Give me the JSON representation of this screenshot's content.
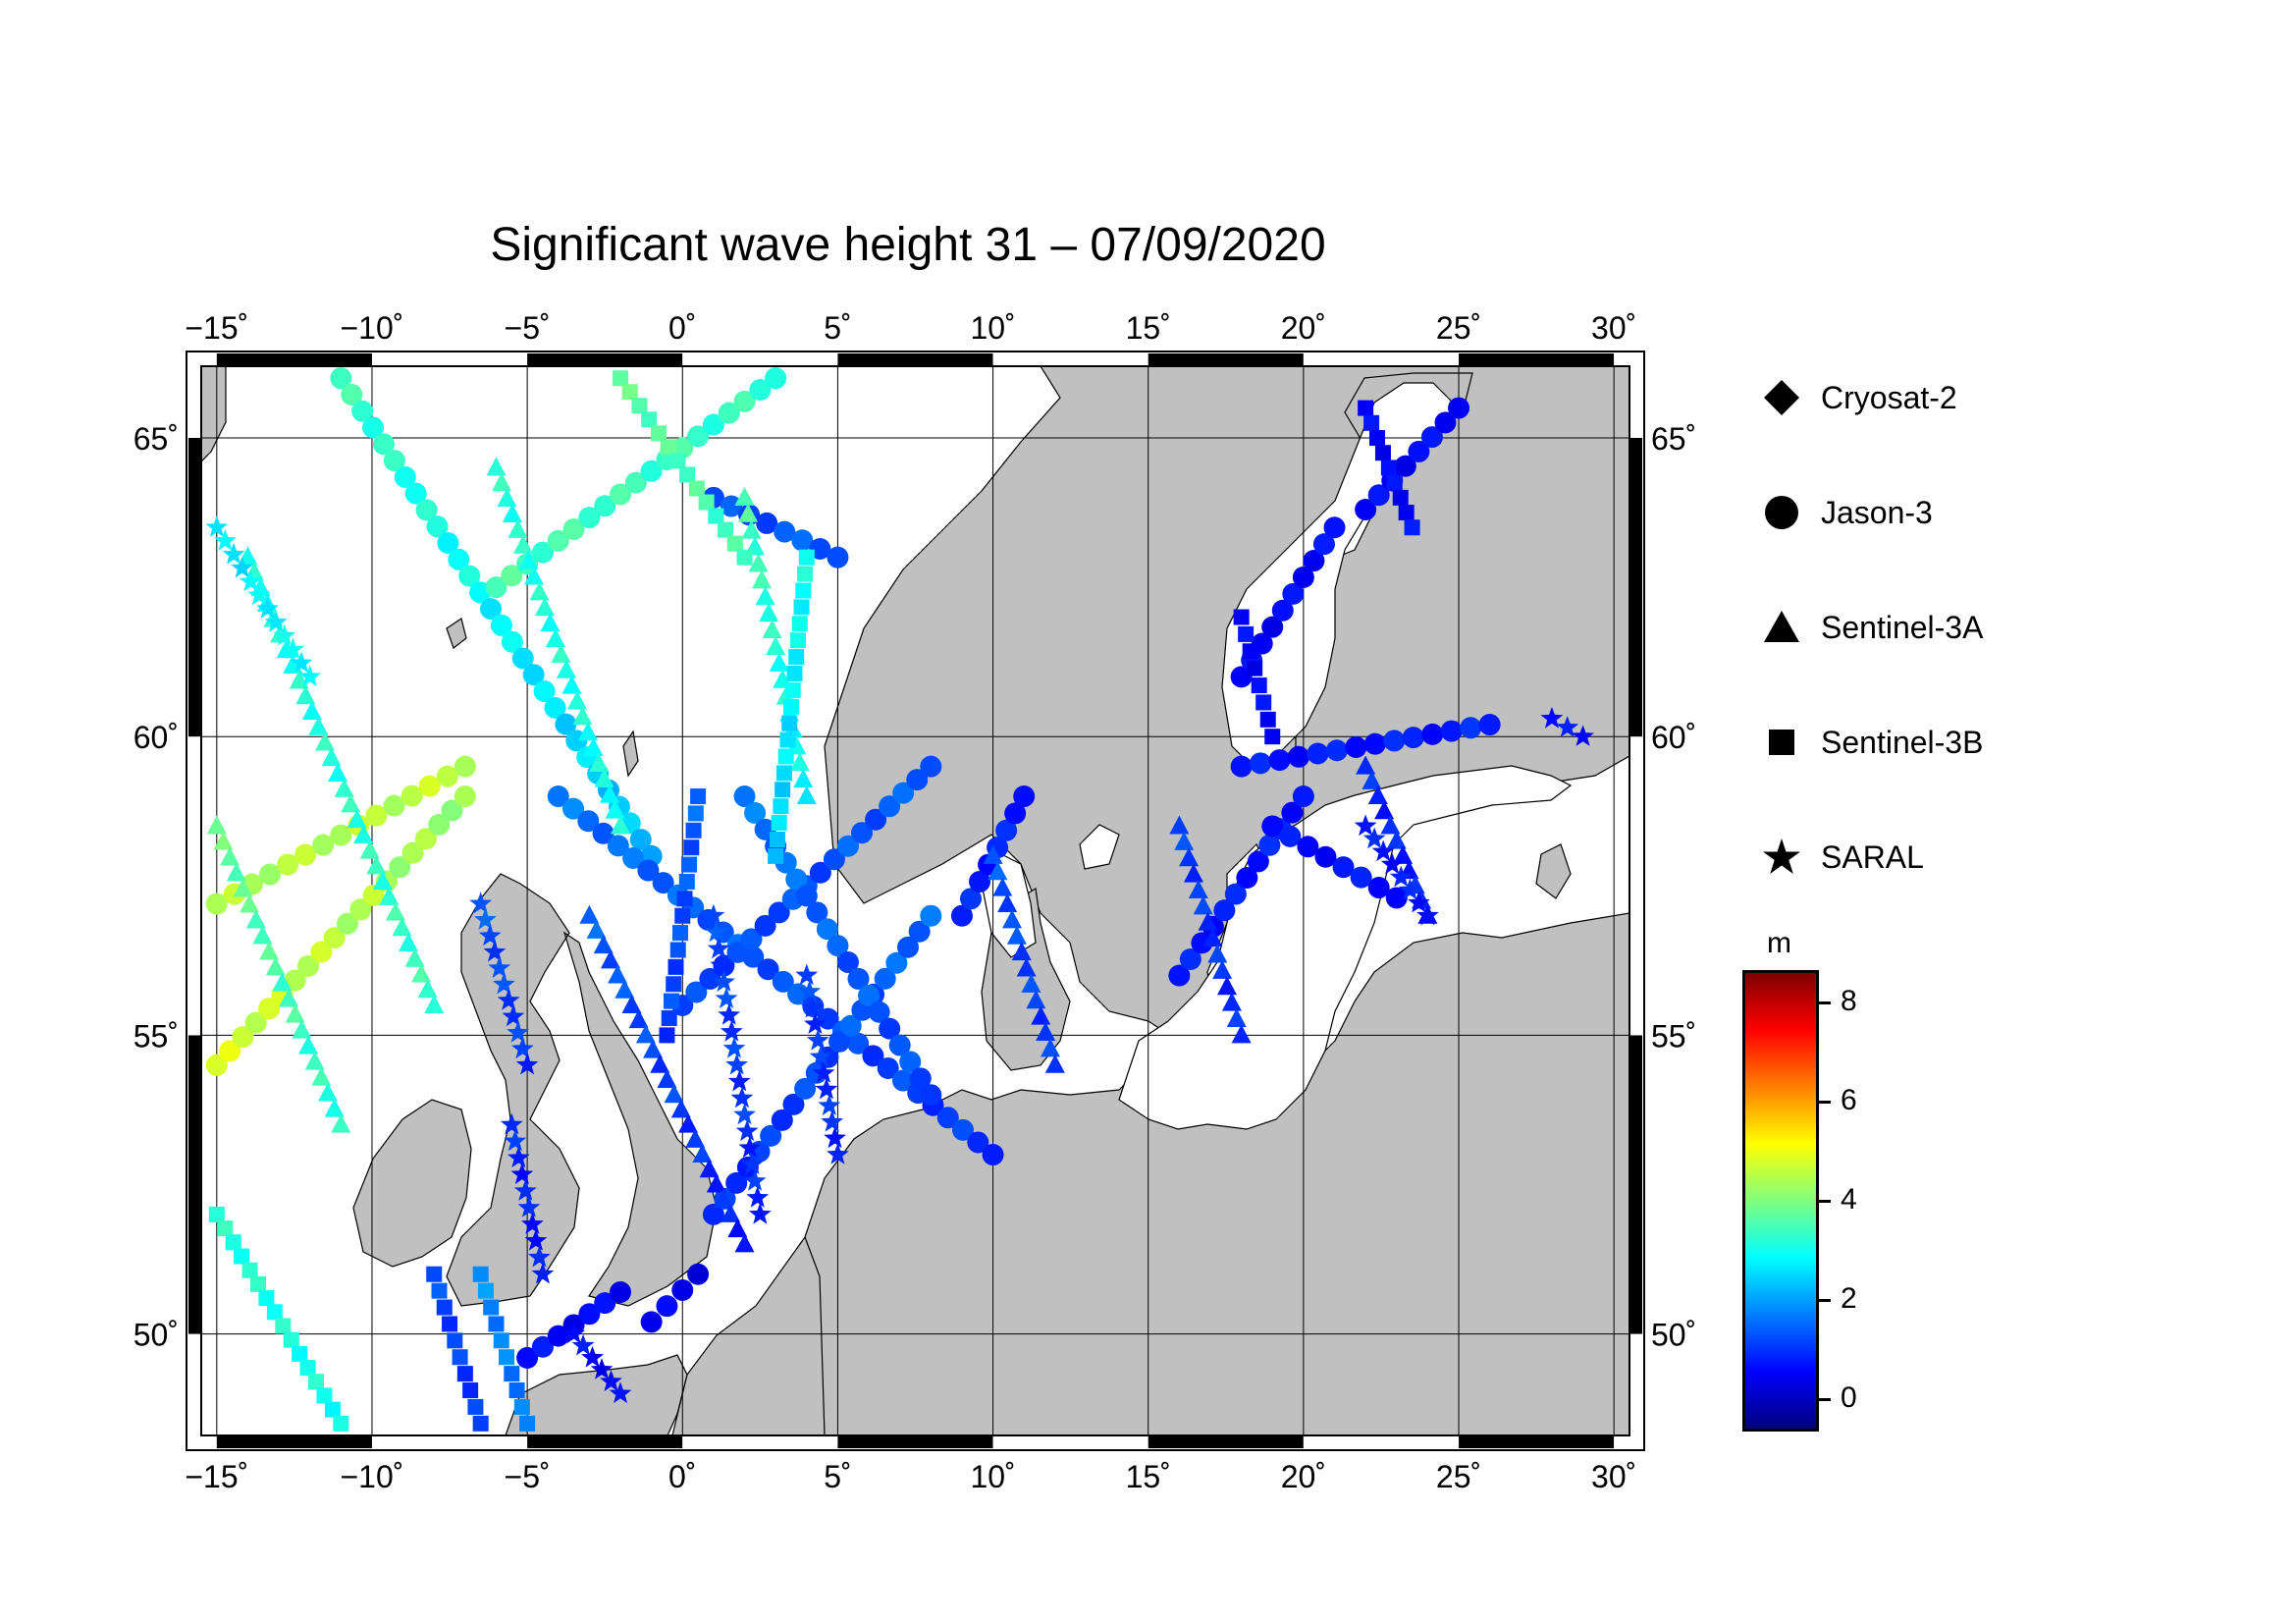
{
  "title": "Significant wave height 31 – 07/09/2020",
  "map": {
    "lon_range": [
      -15.5,
      30.5
    ],
    "lat_range": [
      48.3,
      66.2
    ],
    "lon_ticks": [
      {
        "value": -15,
        "label": "−15˚"
      },
      {
        "value": -10,
        "label": "−10˚"
      },
      {
        "value": -5,
        "label": "−5˚"
      },
      {
        "value": 0,
        "label": "0˚"
      },
      {
        "value": 5,
        "label": "5˚"
      },
      {
        "value": 10,
        "label": "10˚"
      },
      {
        "value": 15,
        "label": "15˚"
      },
      {
        "value": 20,
        "label": "20˚"
      },
      {
        "value": 25,
        "label": "25˚"
      },
      {
        "value": 30,
        "label": "30˚"
      }
    ],
    "lat_ticks": [
      {
        "value": 50,
        "label": "50˚"
      },
      {
        "value": 55,
        "label": "55˚"
      },
      {
        "value": 60,
        "label": "60˚"
      },
      {
        "value": 65,
        "label": "65˚"
      }
    ],
    "land_color": "#c0c0c0",
    "sea_color": "#ffffff",
    "grid": true
  },
  "legend": {
    "items": [
      {
        "label": "Cryosat-2",
        "icon": "diamond-icon"
      },
      {
        "label": "Jason-3",
        "icon": "circle-icon"
      },
      {
        "label": "Sentinel-3A",
        "icon": "triangle-icon"
      },
      {
        "label": "Sentinel-3B",
        "icon": "square-icon"
      },
      {
        "label": "SARAL",
        "icon": "star-icon"
      }
    ]
  },
  "colorbar": {
    "unit": "m",
    "range": [
      -0.6,
      8.6
    ],
    "ticks": [
      {
        "value": 0,
        "label": "0"
      },
      {
        "value": 2,
        "label": "2"
      },
      {
        "value": 4,
        "label": "4"
      },
      {
        "value": 6,
        "label": "6"
      },
      {
        "value": 8,
        "label": "8"
      }
    ],
    "colormap": [
      "#00007f",
      "#0000ff",
      "#007fff",
      "#00ffff",
      "#7fff7f",
      "#ffff00",
      "#ff7f00",
      "#ff0000",
      "#7f0000"
    ]
  },
  "chart_data": {
    "type": "scatter",
    "title": "Significant wave height 31 – 07/09/2020",
    "xlabel": "",
    "ylabel": "",
    "xlim": [
      -15.5,
      30.5
    ],
    "ylim": [
      48.3,
      66.2
    ],
    "grid": true,
    "legend_position": "right",
    "series": [
      {
        "name": "Jason-3",
        "marker": "circle",
        "tracks": [
          {
            "from": [
              -11,
              66
            ],
            "to": [
              -1,
              58
            ],
            "swh": [
              3.4,
              2.2
            ]
          },
          {
            "from": [
              -15,
              57.2
            ],
            "to": [
              -7,
              59.5
            ],
            "swh": [
              4.4,
              4.6
            ]
          },
          {
            "from": [
              -15,
              54.5
            ],
            "to": [
              -7,
              59
            ],
            "swh": [
              4.8,
              4.2
            ]
          },
          {
            "from": [
              -6,
              62.5
            ],
            "to": [
              3,
              66
            ],
            "swh": [
              3.5,
              3.3
            ]
          },
          {
            "from": [
              1,
              64
            ],
            "to": [
              5,
              63
            ],
            "swh": [
              1.2,
              1.4
            ]
          },
          {
            "from": [
              -4,
              59
            ],
            "to": [
              10,
              53
            ],
            "swh": [
              1.6,
              1.0
            ]
          },
          {
            "from": [
              0,
              55.5
            ],
            "to": [
              8,
              59.5
            ],
            "swh": [
              1.1,
              1.4
            ]
          },
          {
            "from": [
              1,
              52
            ],
            "to": [
              8,
              57
            ],
            "swh": [
              0.9,
              1.5
            ]
          },
          {
            "from": [
              2,
              59
            ],
            "to": [
              8,
              54
            ],
            "swh": [
              1.6,
              1.2
            ]
          },
          {
            "from": [
              9,
              57
            ],
            "to": [
              11,
              59
            ],
            "swh": [
              0.8,
              0.8
            ]
          },
          {
            "from": [
              18,
              61
            ],
            "to": [
              21,
              63.5
            ],
            "swh": [
              0.5,
              0.6
            ]
          },
          {
            "from": [
              22,
              63.8
            ],
            "to": [
              25,
              65.5
            ],
            "swh": [
              0.5,
              0.6
            ]
          },
          {
            "from": [
              16,
              56
            ],
            "to": [
              20,
              59
            ],
            "swh": [
              0.7,
              0.8
            ]
          },
          {
            "from": [
              18,
              59.5
            ],
            "to": [
              26,
              60.2
            ],
            "swh": [
              0.7,
              0.8
            ]
          },
          {
            "from": [
              19,
              58.5
            ],
            "to": [
              23,
              57.3
            ],
            "swh": [
              0.6,
              0.7
            ]
          },
          {
            "from": [
              -5,
              49.6
            ],
            "to": [
              -2,
              50.7
            ],
            "swh": [
              0.6,
              0.5
            ]
          },
          {
            "from": [
              -1,
              50.2
            ],
            "to": [
              0.5,
              51
            ],
            "swh": [
              0.4,
              0.4
            ]
          }
        ]
      },
      {
        "name": "Sentinel-3A",
        "marker": "triangle",
        "tracks": [
          {
            "from": [
              -15,
              58.5
            ],
            "to": [
              -11,
              53.5
            ],
            "swh": [
              3.8,
              3.2
            ]
          },
          {
            "from": [
              -14,
              63
            ],
            "to": [
              -8,
              55.5
            ],
            "swh": [
              3.0,
              3.4
            ]
          },
          {
            "from": [
              -6,
              64.5
            ],
            "to": [
              -2,
              58.5
            ],
            "swh": [
              3.2,
              3.0
            ]
          },
          {
            "from": [
              2,
              64
            ],
            "to": [
              4,
              59
            ],
            "swh": [
              3.5,
              2.8
            ]
          },
          {
            "from": [
              -3,
              57
            ],
            "to": [
              2,
              51.5
            ],
            "swh": [
              1.4,
              0.8
            ]
          },
          {
            "from": [
              10,
              58
            ],
            "to": [
              12,
              54.5
            ],
            "swh": [
              1.3,
              1.0
            ]
          },
          {
            "from": [
              16,
              58.5
            ],
            "to": [
              18,
              55
            ],
            "swh": [
              1.1,
              0.9
            ]
          },
          {
            "from": [
              22,
              59.5
            ],
            "to": [
              24,
              57
            ],
            "swh": [
              0.9,
              0.8
            ]
          }
        ]
      },
      {
        "name": "Sentinel-3B",
        "marker": "square",
        "tracks": [
          {
            "from": [
              -15,
              52
            ],
            "to": [
              -11,
              48.5
            ],
            "swh": [
              3.2,
              3.0
            ]
          },
          {
            "from": [
              -8,
              51
            ],
            "to": [
              -6.5,
              48.5
            ],
            "swh": [
              1.2,
              1.0
            ]
          },
          {
            "from": [
              -6.5,
              51
            ],
            "to": [
              -5,
              48.5
            ],
            "swh": [
              1.8,
              1.6
            ]
          },
          {
            "from": [
              -2,
              66
            ],
            "to": [
              2,
              63
            ],
            "swh": [
              3.7,
              3.4
            ]
          },
          {
            "from": [
              0.5,
              59
            ],
            "to": [
              -0.5,
              55
            ],
            "swh": [
              1.4,
              1.1
            ]
          },
          {
            "from": [
              4,
              63
            ],
            "to": [
              3,
              58
            ],
            "swh": [
              3.0,
              2.4
            ]
          },
          {
            "from": [
              22,
              65.5
            ],
            "to": [
              23.5,
              63.5
            ],
            "swh": [
              0.5,
              0.6
            ]
          },
          {
            "from": [
              18,
              62
            ],
            "to": [
              19,
              60
            ],
            "swh": [
              0.5,
              0.6
            ]
          }
        ]
      },
      {
        "name": "SARAL",
        "marker": "star",
        "tracks": [
          {
            "from": [
              -15,
              63.5
            ],
            "to": [
              -12,
              61
            ],
            "swh": [
              2.6,
              2.9
            ]
          },
          {
            "from": [
              -6.5,
              57.2
            ],
            "to": [
              -5,
              54.5
            ],
            "swh": [
              1.3,
              1.0
            ]
          },
          {
            "from": [
              -5.5,
              53.5
            ],
            "to": [
              -4.5,
              51
            ],
            "swh": [
              0.9,
              0.7
            ]
          },
          {
            "from": [
              1,
              57
            ],
            "to": [
              2.5,
              52
            ],
            "swh": [
              1.2,
              0.9
            ]
          },
          {
            "from": [
              4,
              56
            ],
            "to": [
              5,
              53
            ],
            "swh": [
              1.1,
              0.9
            ]
          },
          {
            "from": [
              -3.5,
              50
            ],
            "to": [
              -2,
              49
            ],
            "swh": [
              0.6,
              0.5
            ]
          },
          {
            "from": [
              22,
              58.5
            ],
            "to": [
              24,
              57
            ],
            "swh": [
              0.7,
              0.8
            ]
          },
          {
            "from": [
              28,
              60.3
            ],
            "to": [
              29,
              60
            ],
            "swh": [
              0.6,
              0.6
            ]
          }
        ]
      }
    ]
  }
}
